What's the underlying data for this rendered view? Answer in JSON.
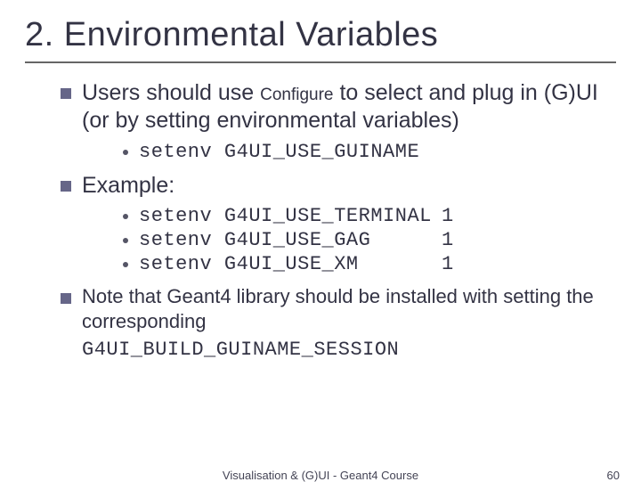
{
  "title": "2. Environmental Variables",
  "bullets": {
    "b1_pre": "Users should use ",
    "b1_conf": "Configure",
    "b1_post": " to select and plug in (G)UI (or by setting environmental variables)",
    "b1_sub1": "setenv G4UI_USE_GUINAME",
    "b2": "Example:",
    "b2_sub1_cmd": "setenv G4UI_USE_TERMINAL",
    "b2_sub1_val": "1",
    "b2_sub2_cmd": "setenv G4UI_USE_GAG",
    "b2_sub2_val": "1",
    "b2_sub3_cmd": "setenv G4UI_USE_XM",
    "b2_sub3_val": "1",
    "b3": "Note that Geant4 library should be installed with setting the corresponding",
    "b3_mono": "G4UI_BUILD_GUINAME_SESSION"
  },
  "footer": {
    "center": "Visualisation & (G)UI - Geant4 Course",
    "page": "60"
  },
  "colors": {
    "text": "#333344",
    "bullet": "#666688",
    "rule": "#666666",
    "bg": "#ffffff"
  }
}
